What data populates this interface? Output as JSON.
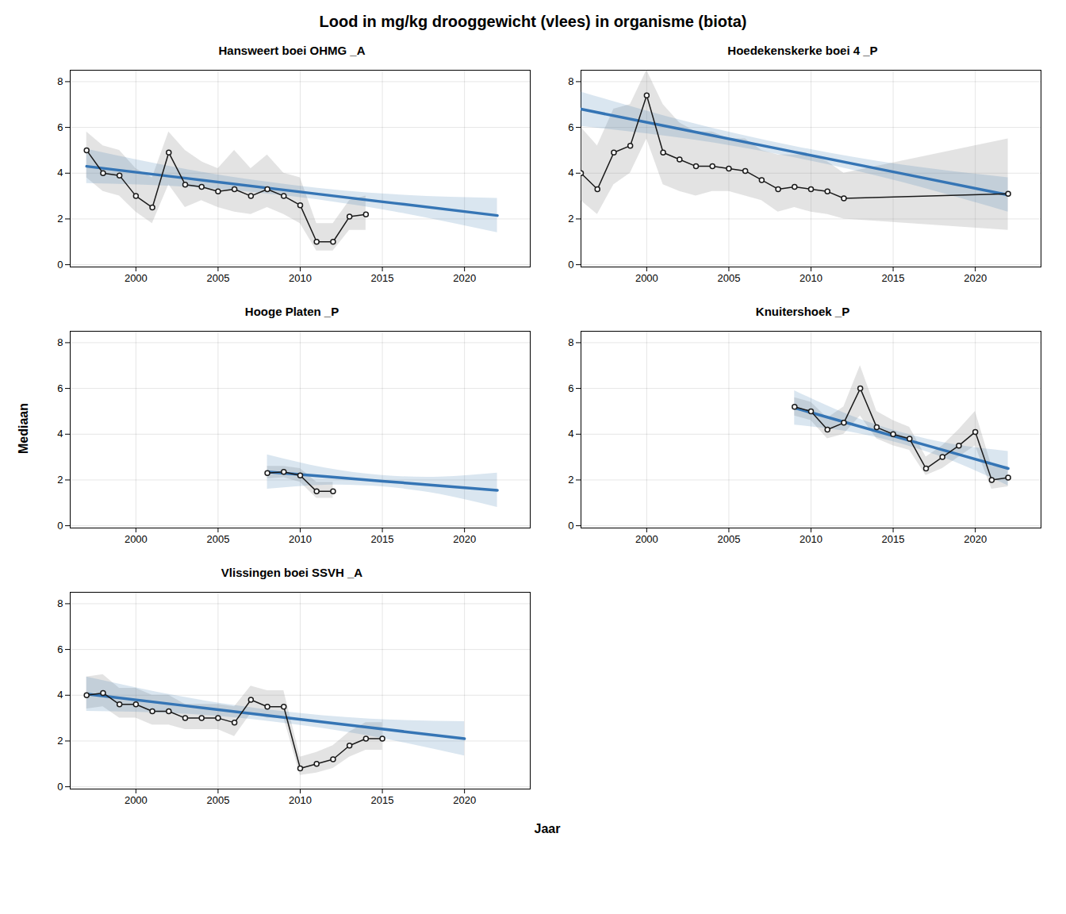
{
  "chart_data": {
    "type": "line",
    "title": "Lood in mg/kg drooggewicht (vlees) in organisme (biota)",
    "ylabel": "Mediaan",
    "xlabel": "Jaar",
    "ylim": [
      -0.1,
      8.5
    ],
    "yticks": [
      0,
      2,
      4,
      6,
      8
    ],
    "grid": true,
    "color": "#1A1A1A",
    "marker": "circle",
    "band_color": "#999999",
    "trend_color": "#3575B5",
    "trend_band_color": "#4682B4",
    "subplots": [
      {
        "title": "Hansweert boei OHMG _A",
        "x": [
          1997,
          1998,
          1999,
          2000,
          2001,
          2002,
          2003,
          2004,
          2005,
          2006,
          2007,
          2008,
          2009,
          2010,
          2011,
          2012,
          2013,
          2014
        ],
        "values": [
          5.0,
          4.0,
          3.9,
          3.0,
          2.5,
          4.9,
          3.5,
          3.4,
          3.2,
          3.3,
          3.0,
          3.3,
          3.0,
          2.6,
          1.0,
          1.0,
          2.1,
          2.2
        ],
        "band_low": [
          3.8,
          3.2,
          3.0,
          2.3,
          1.8,
          3.5,
          2.5,
          2.8,
          2.5,
          2.3,
          2.2,
          2.5,
          2.2,
          1.8,
          0.6,
          0.6,
          1.5,
          1.5
        ],
        "band_high": [
          5.8,
          5.2,
          5.0,
          4.2,
          3.8,
          5.8,
          5.0,
          4.5,
          4.2,
          5.0,
          4.2,
          4.8,
          4.0,
          3.8,
          1.8,
          1.8,
          2.8,
          3.0
        ],
        "trend_x": [
          1997,
          2003.25,
          2009.5,
          2015.75,
          2022
        ],
        "trend_values": [
          4.3,
          3.7625,
          3.225,
          2.6875,
          2.15
        ],
        "trend_low": [
          3.55,
          3.3875,
          2.975,
          2.3125,
          1.4
        ],
        "trend_high": [
          5.05,
          4.1375,
          3.475,
          3.0625,
          2.9
        ],
        "xlim": [
          1996,
          2024
        ],
        "xticks": [
          2000,
          2005,
          2010,
          2015,
          2020
        ]
      },
      {
        "title": "Hoedekenskerke boei 4 _P",
        "x": [
          1996,
          1997,
          1998,
          1999,
          2000,
          2001,
          2002,
          2003,
          2004,
          2005,
          2006,
          2007,
          2008,
          2009,
          2010,
          2011,
          2012,
          2022
        ],
        "values": [
          4.0,
          3.3,
          4.9,
          5.2,
          7.4,
          4.9,
          4.6,
          4.3,
          4.3,
          4.2,
          4.1,
          3.7,
          3.3,
          3.4,
          3.3,
          3.2,
          2.9,
          3.1
        ],
        "band_low": [
          2.8,
          2.2,
          3.5,
          4.0,
          5.5,
          3.5,
          3.2,
          3.0,
          3.2,
          3.2,
          3.0,
          2.8,
          2.3,
          2.5,
          2.3,
          2.2,
          2.0,
          1.5
        ],
        "band_high": [
          6.0,
          5.2,
          6.8,
          7.0,
          8.5,
          7.0,
          6.2,
          5.8,
          5.8,
          5.5,
          5.5,
          5.0,
          4.8,
          4.8,
          4.8,
          4.5,
          4.0,
          5.5
        ],
        "trend_x": [
          1996,
          2002.5,
          2009,
          2015.5,
          2022
        ],
        "trend_values": [
          6.8,
          5.8625,
          4.925,
          3.9875,
          3.05
        ],
        "trend_low": [
          6.05,
          5.4875,
          4.675,
          3.6125,
          2.3
        ],
        "trend_high": [
          7.55,
          6.2375,
          5.175,
          4.3625,
          3.8
        ],
        "xlim": [
          1996,
          2024
        ],
        "xticks": [
          2000,
          2005,
          2010,
          2015,
          2020
        ]
      },
      {
        "title": "Hooge Platen _P",
        "x": [
          2008,
          2009,
          2010,
          2011,
          2012
        ],
        "values": [
          2.3,
          2.35,
          2.2,
          1.5,
          1.5
        ],
        "band_low": [
          2.05,
          2.1,
          1.9,
          1.2,
          1.2
        ],
        "band_high": [
          2.6,
          2.6,
          2.5,
          1.9,
          1.9
        ],
        "trend_x": [
          2008,
          2011.5,
          2015,
          2018.5,
          2022
        ],
        "trend_values": [
          2.35,
          2.15,
          1.95,
          1.75,
          1.55
        ],
        "trend_low": [
          1.6,
          1.775,
          1.7,
          1.375,
          0.8
        ],
        "trend_high": [
          3.1,
          2.525,
          2.2,
          2.125,
          2.3
        ],
        "xlim": [
          1996,
          2024
        ],
        "xticks": [
          2000,
          2005,
          2010,
          2015,
          2020
        ]
      },
      {
        "title": "Knuitershoek _P",
        "x": [
          2009,
          2010,
          2011,
          2012,
          2013,
          2014,
          2015,
          2016,
          2017,
          2018,
          2019,
          2020,
          2021,
          2022
        ],
        "values": [
          5.2,
          5.0,
          4.2,
          4.5,
          6.0,
          4.3,
          4.0,
          3.8,
          2.5,
          3.0,
          3.5,
          4.1,
          2.0,
          2.1
        ],
        "band_low": [
          4.8,
          4.6,
          3.8,
          4.0,
          4.8,
          3.8,
          3.5,
          3.3,
          2.2,
          2.5,
          3.0,
          3.5,
          1.6,
          1.7
        ],
        "band_high": [
          5.6,
          5.4,
          4.7,
          5.2,
          7.0,
          5.0,
          4.6,
          4.3,
          3.0,
          3.5,
          4.2,
          5.0,
          2.6,
          2.6
        ],
        "trend_x": [
          2009,
          2012.25,
          2015.5,
          2018.75,
          2022
        ],
        "trend_values": [
          5.15,
          4.4875,
          3.825,
          3.1625,
          2.5
        ],
        "trend_low": [
          4.4,
          4.1125,
          3.575,
          2.7875,
          1.75
        ],
        "trend_high": [
          5.9,
          4.8625,
          4.075,
          3.5375,
          3.25
        ],
        "xlim": [
          1996,
          2024
        ],
        "xticks": [
          2000,
          2005,
          2010,
          2015,
          2020
        ]
      },
      {
        "title": "Vlissingen boei SSVH _A",
        "x": [
          1997,
          1998,
          1999,
          2000,
          2001,
          2002,
          2003,
          2004,
          2005,
          2006,
          2007,
          2008,
          2009,
          2010,
          2011,
          2012,
          2013,
          2014,
          2015
        ],
        "values": [
          4.0,
          4.1,
          3.6,
          3.6,
          3.3,
          3.3,
          3.0,
          3.0,
          3.0,
          2.8,
          3.8,
          3.5,
          3.5,
          0.8,
          1.0,
          1.2,
          1.8,
          2.1,
          2.1
        ],
        "band_low": [
          3.4,
          3.5,
          3.0,
          3.0,
          2.7,
          2.7,
          2.5,
          2.5,
          2.5,
          2.2,
          3.2,
          3.0,
          3.0,
          0.5,
          0.6,
          0.8,
          1.3,
          1.6,
          1.6
        ],
        "band_high": [
          4.8,
          4.9,
          4.3,
          4.3,
          4.0,
          4.0,
          3.6,
          3.6,
          3.6,
          3.5,
          4.4,
          4.2,
          4.2,
          1.3,
          1.5,
          1.8,
          2.4,
          2.8,
          2.8
        ],
        "trend_x": [
          1997,
          2002.75,
          2008.5,
          2014.25,
          2020
        ],
        "trend_values": [
          4.05,
          3.5625,
          3.075,
          2.5875,
          2.1
        ],
        "trend_low": [
          3.3,
          3.1875,
          2.825,
          2.2125,
          1.35
        ],
        "trend_high": [
          4.8,
          3.9375,
          3.325,
          2.9625,
          2.85
        ],
        "xlim": [
          1996,
          2024
        ],
        "xticks": [
          2000,
          2005,
          2010,
          2015,
          2020
        ]
      }
    ]
  }
}
